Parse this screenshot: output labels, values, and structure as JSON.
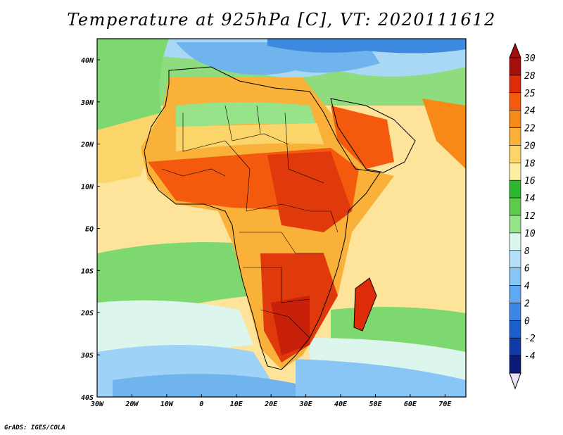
{
  "title": "Temperature at 925hPa [C], VT: 2020111612",
  "credit": "GrADS: IGES/COLA",
  "map": {
    "lon_range": [
      -30,
      76
    ],
    "lat_range": [
      -40,
      45
    ],
    "x_ticks": [
      {
        "lon": -30,
        "label": "30W"
      },
      {
        "lon": -20,
        "label": "20W"
      },
      {
        "lon": -10,
        "label": "10W"
      },
      {
        "lon": 0,
        "label": "0"
      },
      {
        "lon": 10,
        "label": "10E"
      },
      {
        "lon": 20,
        "label": "20E"
      },
      {
        "lon": 30,
        "label": "30E"
      },
      {
        "lon": 40,
        "label": "40E"
      },
      {
        "lon": 50,
        "label": "50E"
      },
      {
        "lon": 60,
        "label": "60E"
      },
      {
        "lon": 70,
        "label": "70E"
      }
    ],
    "y_ticks": [
      {
        "lat": 40,
        "label": "40N"
      },
      {
        "lat": 30,
        "label": "30N"
      },
      {
        "lat": 20,
        "label": "20N"
      },
      {
        "lat": 10,
        "label": "10N"
      },
      {
        "lat": 0,
        "label": "EQ"
      },
      {
        "lat": -10,
        "label": "10S"
      },
      {
        "lat": -20,
        "label": "20S"
      },
      {
        "lat": -30,
        "label": "30S"
      },
      {
        "lat": -40,
        "label": "40S"
      }
    ]
  },
  "colorbar": {
    "levels": [
      {
        "label": "30",
        "color": "#a50f0b"
      },
      {
        "label": "28",
        "color": "#de2b08"
      },
      {
        "label": "25",
        "color": "#f45a0d"
      },
      {
        "label": "24",
        "color": "#f78a17"
      },
      {
        "label": "22",
        "color": "#f9b13a"
      },
      {
        "label": "20",
        "color": "#fbd56a"
      },
      {
        "label": "18",
        "color": "#fdf0a4"
      },
      {
        "label": "16",
        "color": "#2db52d"
      },
      {
        "label": "14",
        "color": "#5dcc4d"
      },
      {
        "label": "12",
        "color": "#96e38a"
      },
      {
        "label": "10",
        "color": "#dcf6ee"
      },
      {
        "label": "8",
        "color": "#b4dff8"
      },
      {
        "label": "6",
        "color": "#8ac6f5"
      },
      {
        "label": "4",
        "color": "#5ea9ef"
      },
      {
        "label": "2",
        "color": "#3a86e2"
      },
      {
        "label": "0",
        "color": "#1c5fcc"
      },
      {
        "label": "-2",
        "color": "#0f3aa8"
      },
      {
        "label": "-4",
        "color": "#0c1a78"
      }
    ],
    "top_arrow_color": "#a50f0b",
    "bottom_arrow_color": "#e8e2f8"
  },
  "colors": {
    "ocean_warm": "#fde49a",
    "ocean_cool_green": "#7ed870",
    "ocean_cold": "#9fd2f7",
    "land_hot": "#e03a0c",
    "border": "#000000"
  }
}
